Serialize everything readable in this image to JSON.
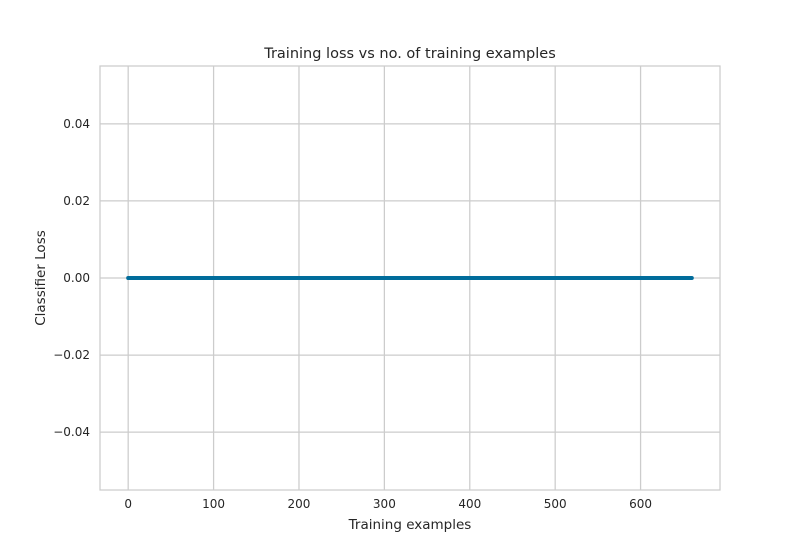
{
  "chart_data": {
    "type": "line",
    "title": "Training loss vs no. of training examples",
    "xlabel": "Training examples",
    "ylabel": "Classifier Loss",
    "xlim": [
      -33,
      693
    ],
    "ylim": [
      -0.055,
      0.055
    ],
    "xticks": [
      0,
      100,
      200,
      300,
      400,
      500,
      600
    ],
    "yticks": [
      -0.04,
      -0.02,
      0.0,
      0.02,
      0.04
    ],
    "ytick_labels": [
      "−0.04",
      "−0.02",
      "0.00",
      "0.02",
      "0.04"
    ],
    "grid": true,
    "series": [
      {
        "color": "#006c9b",
        "x": [
          0,
          660
        ],
        "y": [
          0.0,
          0.0
        ]
      }
    ]
  }
}
